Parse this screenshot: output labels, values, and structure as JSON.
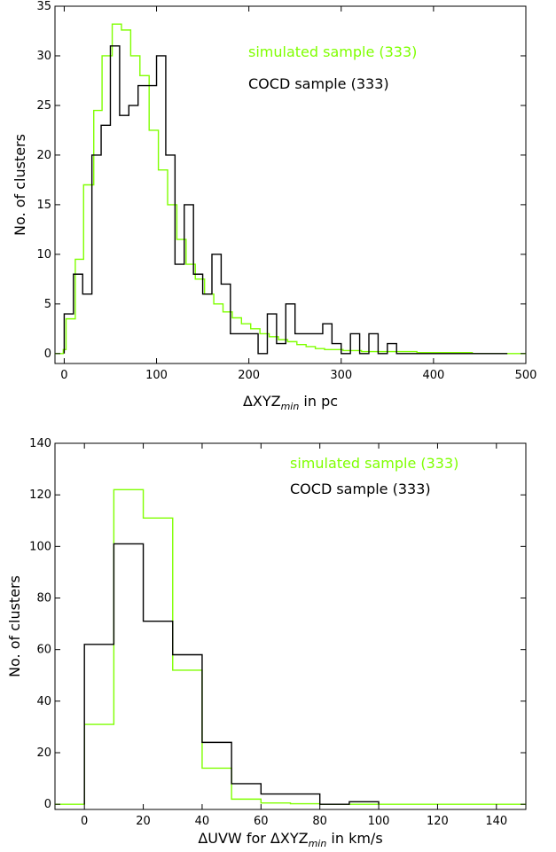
{
  "chart_data": [
    {
      "type": "histogram",
      "xlabel": "ΔXYZ",
      "xlabel_sub": "min",
      "xlabel_suffix": " in pc",
      "ylabel": "No. of clusters",
      "xlim": [
        -10,
        500
      ],
      "ylim": [
        -1,
        35
      ],
      "xticks": [
        0,
        100,
        200,
        300,
        400,
        500
      ],
      "yticks": [
        0,
        5,
        10,
        15,
        20,
        25,
        30,
        35
      ],
      "legend_placement": "top-right",
      "grid": false,
      "series": [
        {
          "name": "simulated sample (333)",
          "color": "#7fff00",
          "edges": [
            -10,
            -1,
            2,
            12,
            21,
            32,
            41,
            52,
            62,
            72,
            82,
            92,
            102,
            112,
            122,
            132,
            142,
            152,
            162,
            172,
            182,
            192,
            202,
            212,
            222,
            232,
            242,
            252,
            262,
            272,
            282,
            302,
            322,
            382,
            442,
            500
          ],
          "values": [
            0,
            0.4,
            3.5,
            9.5,
            17,
            24.5,
            30,
            33.2,
            32.6,
            30,
            28,
            22.5,
            18.5,
            15,
            11.5,
            9,
            7.5,
            6,
            5,
            4.2,
            3.6,
            3,
            2.5,
            2,
            1.7,
            1.4,
            1.2,
            0.9,
            0.7,
            0.5,
            0.4,
            0.3,
            0.2,
            0.1,
            0
          ]
        },
        {
          "name": "COCD sample (333)",
          "color": "#000000",
          "edges": [
            0,
            10,
            20,
            30,
            40,
            50,
            60,
            70,
            80,
            90,
            100,
            110,
            120,
            130,
            140,
            150,
            160,
            170,
            180,
            190,
            200,
            210,
            220,
            230,
            240,
            250,
            260,
            270,
            280,
            290,
            300,
            310,
            320,
            330,
            340,
            350,
            360,
            480
          ],
          "values": [
            4,
            8,
            6,
            20,
            23,
            31,
            24,
            25,
            27,
            27,
            30,
            20,
            9,
            15,
            8,
            6,
            10,
            7,
            2,
            2,
            2,
            0,
            4,
            1,
            5,
            2,
            2,
            2,
            3,
            1,
            0,
            2,
            0,
            2,
            0,
            1,
            0
          ]
        }
      ]
    },
    {
      "type": "histogram",
      "xlabel": "ΔUVW for ΔXYZ",
      "xlabel_sub": "min",
      "xlabel_suffix": " in km/s",
      "ylabel": "No. of clusters",
      "xlim": [
        -10,
        150
      ],
      "ylim": [
        -2,
        140
      ],
      "xticks": [
        0,
        20,
        40,
        60,
        80,
        100,
        120,
        140
      ],
      "yticks": [
        0,
        20,
        40,
        60,
        80,
        100,
        120,
        140
      ],
      "legend_placement": "top-right",
      "grid": false,
      "series": [
        {
          "name": "simulated sample (333)",
          "color": "#7fff00",
          "edges": [
            -10,
            0,
            10,
            20,
            30,
            40,
            50,
            60,
            70,
            80,
            90,
            100,
            150
          ],
          "values": [
            0,
            31,
            122,
            111,
            52,
            14,
            2,
            0.5,
            0.2,
            0,
            0,
            0
          ]
        },
        {
          "name": "COCD sample (333)",
          "color": "#000000",
          "edges": [
            0,
            10,
            20,
            30,
            40,
            50,
            60,
            70,
            80,
            90,
            100
          ],
          "values": [
            62,
            101,
            71,
            58,
            24,
            8,
            4,
            4,
            0,
            1
          ]
        }
      ]
    }
  ]
}
